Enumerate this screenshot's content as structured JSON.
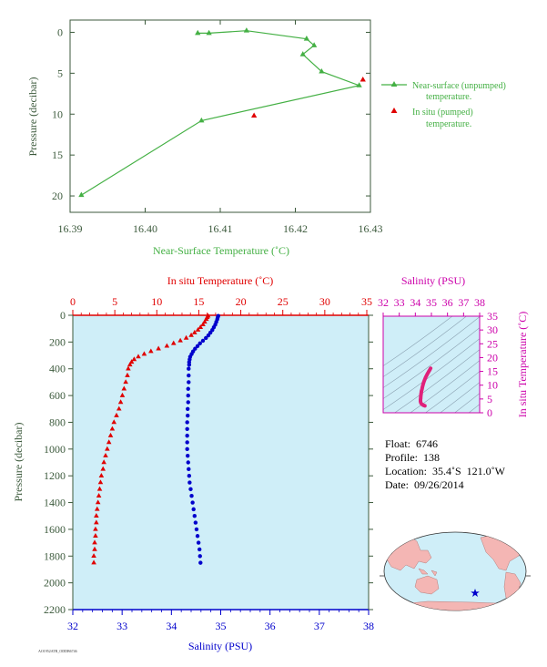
{
  "top_chart": {
    "xlabel": "Near-Surface Temperature (˚C)",
    "ylabel": "Pressure (decibar)",
    "xticks": [
      "16.39",
      "16.40",
      "16.41",
      "16.42",
      "16.43"
    ],
    "yticks": [
      "0",
      "5",
      "10",
      "15",
      "20"
    ],
    "legend": {
      "unpumped_line1": "Near-surface (unpumped)",
      "unpumped_line2": "temperature.",
      "pumped_line1": "In situ (pumped)",
      "pumped_line2": "temperature."
    }
  },
  "main_chart": {
    "top_label": "In situ Temperature (˚C)",
    "bottom_label": "Salinity (PSU)",
    "ylabel": "Pressure (decibar)",
    "temp_ticks": [
      "0",
      "5",
      "10",
      "15",
      "20",
      "25",
      "30",
      "35"
    ],
    "sal_ticks": [
      "32",
      "33",
      "34",
      "35",
      "36",
      "37",
      "38"
    ],
    "p_ticks": [
      "0",
      "200",
      "400",
      "600",
      "800",
      "1000",
      "1200",
      "1400",
      "1600",
      "1800",
      "2000",
      "2200"
    ]
  },
  "ts_chart": {
    "top_label": "Salinity (PSU)",
    "right_label": "In situ Temperature (˚C)",
    "sal_ticks": [
      "32",
      "33",
      "34",
      "35",
      "36",
      "37",
      "38"
    ],
    "temp_ticks": [
      "0",
      "5",
      "10",
      "15",
      "20",
      "25",
      "30",
      "35"
    ]
  },
  "float_info": {
    "float": "Float:  6746",
    "profile": "Profile:  138",
    "location": "Location:  35.4˚S  121.0˚W",
    "date": "Date:  09/26/2014"
  },
  "footer_id": "AO1952ATR_ODDB6746",
  "colors": {
    "green": "#44b044",
    "red": "#e00000",
    "blue": "#0000cc",
    "magenta": "#cc00aa",
    "ocean": "#cfeef8",
    "land": "#f4b6b4"
  },
  "chart_data": [
    {
      "type": "line",
      "name": "near-surface",
      "x_label": "Near-Surface Temperature (˚C)",
      "y_label": "Pressure (decibar)",
      "xlim": [
        16.39,
        16.43
      ],
      "ylim": [
        22,
        -1.5
      ],
      "series": [
        {
          "name": "Near-surface (unpumped) temperature.",
          "x": [
            16.407,
            16.4085,
            16.4135,
            16.4215,
            16.4225,
            16.421,
            16.4235,
            16.4285,
            16.4075,
            16.3915
          ],
          "y": [
            0.1,
            0.1,
            -0.2,
            0.8,
            1.6,
            2.7,
            4.8,
            6.5,
            10.8,
            19.9
          ]
        },
        {
          "name": "In situ (pumped) temperature.",
          "x": [
            16.429,
            16.4145
          ],
          "y": [
            5.8,
            10.2
          ]
        }
      ]
    },
    {
      "type": "scatter",
      "name": "profile",
      "pressure_lim": [
        2200,
        0
      ],
      "temp_lim": [
        0,
        35
      ],
      "salinity_lim": [
        32,
        38
      ],
      "pressure": [
        5,
        15,
        30,
        50,
        70,
        90,
        110,
        130,
        150,
        170,
        190,
        210,
        230,
        250,
        270,
        290,
        310,
        330,
        350,
        370,
        400,
        450,
        500,
        550,
        600,
        650,
        700,
        750,
        800,
        850,
        900,
        950,
        1000,
        1050,
        1100,
        1150,
        1200,
        1250,
        1300,
        1350,
        1400,
        1450,
        1500,
        1550,
        1600,
        1650,
        1700,
        1750,
        1800,
        1850
      ],
      "temperature": [
        16.1,
        16.0,
        15.9,
        15.7,
        15.5,
        15.2,
        14.9,
        14.5,
        14.1,
        13.5,
        12.8,
        12.0,
        11.2,
        10.2,
        9.3,
        8.5,
        7.8,
        7.3,
        7.0,
        6.8,
        6.6,
        6.5,
        6.3,
        6.1,
        5.9,
        5.7,
        5.5,
        5.2,
        4.9,
        4.7,
        4.5,
        4.3,
        4.1,
        3.9,
        3.7,
        3.6,
        3.4,
        3.3,
        3.2,
        3.1,
        3.0,
        2.9,
        2.8,
        2.8,
        2.7,
        2.7,
        2.6,
        2.6,
        2.5,
        2.5
      ],
      "salinity": [
        34.95,
        34.94,
        34.93,
        34.91,
        34.89,
        34.86,
        34.83,
        34.79,
        34.75,
        34.7,
        34.64,
        34.58,
        34.53,
        34.48,
        34.44,
        34.41,
        34.38,
        34.37,
        34.36,
        34.36,
        34.35,
        34.35,
        34.35,
        34.34,
        34.34,
        34.34,
        34.33,
        34.33,
        34.32,
        34.32,
        34.32,
        34.32,
        34.32,
        34.33,
        34.34,
        34.35,
        34.36,
        34.37,
        34.39,
        34.41,
        34.43,
        34.45,
        34.47,
        34.49,
        34.51,
        34.53,
        34.55,
        34.57,
        34.58,
        34.59
      ]
    }
  ]
}
